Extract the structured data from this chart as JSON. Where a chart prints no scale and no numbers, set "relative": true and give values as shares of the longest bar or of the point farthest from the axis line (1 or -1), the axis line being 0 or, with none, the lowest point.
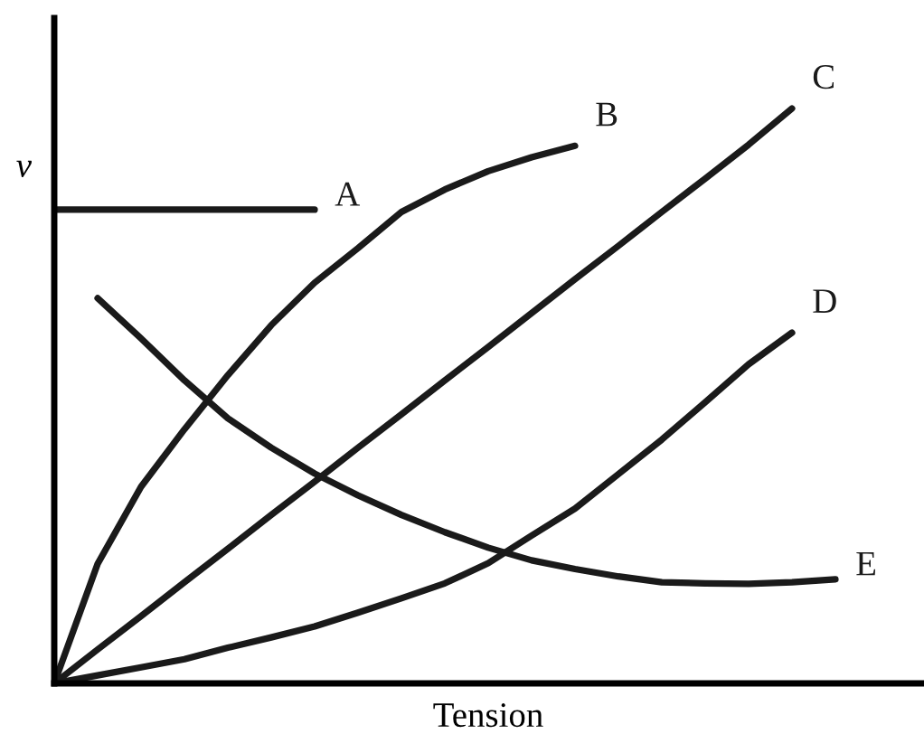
{
  "chart_data": {
    "type": "line",
    "relative": true,
    "xlabel": "Tension",
    "ylabel": "v",
    "marker": "none",
    "line_style": "solid",
    "categories": [
      null,
      null,
      null,
      null,
      null,
      null,
      null,
      null,
      null,
      null,
      null,
      null,
      null,
      null,
      null,
      null,
      null,
      null,
      null,
      null,
      null
    ],
    "series": [
      {
        "name": "A",
        "color": "#1a1a1a",
        "values": [
          0.824,
          0.824,
          0.824,
          0.824,
          0.824,
          0.824,
          0.824,
          null,
          null,
          null,
          null,
          null,
          null,
          null,
          null,
          null,
          null,
          null,
          null,
          null,
          null
        ]
      },
      {
        "name": "B",
        "color": "#1a1a1a",
        "values": [
          0,
          0.208,
          0.342,
          0.442,
          0.536,
          0.623,
          0.697,
          0.757,
          0.82,
          0.859,
          0.891,
          0.915,
          0.935,
          null,
          null,
          null,
          null,
          null,
          null,
          null,
          null
        ]
      },
      {
        "name": "C",
        "color": "#1a1a1a",
        "values": [
          0,
          0.059,
          0.117,
          0.176,
          0.234,
          0.293,
          0.351,
          0.41,
          0.468,
          0.527,
          0.585,
          0.644,
          0.703,
          0.761,
          0.82,
          0.878,
          0.937,
          1,
          null,
          null,
          null
        ]
      },
      {
        "name": "D",
        "color": "#1a1a1a",
        "values": [
          0,
          0.014,
          0.028,
          0.042,
          0.062,
          0.08,
          0.099,
          0.123,
          0.148,
          0.174,
          0.209,
          0.257,
          0.304,
          0.364,
          0.424,
          0.489,
          0.555,
          0.61,
          null,
          null,
          null
        ]
      },
      {
        "name": "E",
        "color": "#1a1a1a",
        "values": [
          null,
          0.67,
          0.6,
          0.527,
          0.461,
          0.41,
          0.365,
          0.327,
          0.293,
          0.263,
          0.236,
          0.214,
          0.199,
          0.186,
          0.176,
          0.174,
          0.173,
          0.176,
          0.181,
          null,
          null
        ]
      }
    ]
  }
}
